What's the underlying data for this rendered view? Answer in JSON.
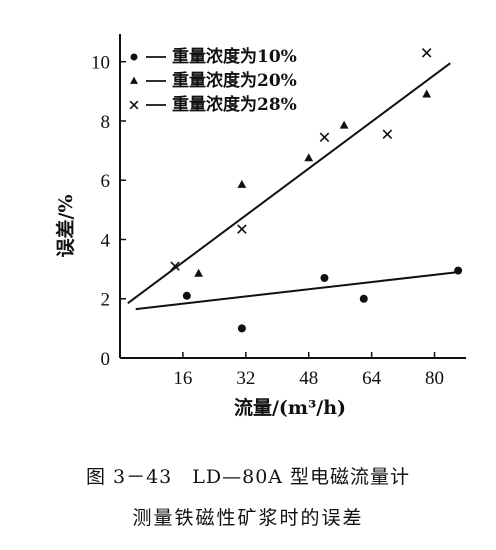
{
  "chart_data": {
    "type": "scatter",
    "xlabel": "流量/(m³/h)",
    "ylabel": "误差/%",
    "xlim": [
      0,
      88
    ],
    "ylim": [
      0,
      10.8
    ],
    "xticks": [
      16,
      32,
      48,
      64,
      80
    ],
    "yticks": [
      0,
      2,
      4,
      6,
      8,
      10
    ],
    "xtick_labels": [
      "16",
      "32",
      "48",
      "64",
      "80"
    ],
    "ytick_labels": [
      "0",
      "2",
      "4",
      "6",
      "8",
      "10"
    ],
    "legend_position": "top-left",
    "grid": false,
    "series": [
      {
        "name": "重量浓度为10%",
        "marker": "circle",
        "line_marker": "•",
        "points": [
          [
            17,
            2.1
          ],
          [
            31,
            1.0
          ],
          [
            52,
            2.7
          ],
          [
            62,
            2.0
          ],
          [
            86,
            2.95
          ]
        ]
      },
      {
        "name": "重量浓度为20%",
        "marker": "triangle",
        "line_marker": "▲",
        "points": [
          [
            20,
            2.85
          ],
          [
            31,
            5.85
          ],
          [
            48,
            6.75
          ],
          [
            57,
            7.85
          ],
          [
            78,
            8.9
          ]
        ]
      },
      {
        "name": "重量浓度为28%",
        "marker": "cross",
        "line_marker": "×",
        "points": [
          [
            14,
            3.1
          ],
          [
            31,
            4.35
          ],
          [
            52,
            7.45
          ],
          [
            68,
            7.55
          ],
          [
            78,
            10.3
          ]
        ]
      }
    ],
    "fit_lines": [
      {
        "name": "fit-10",
        "from": [
          4,
          1.65
        ],
        "to": [
          86,
          2.9
        ]
      },
      {
        "name": "fit-28",
        "from": [
          2,
          1.85
        ],
        "to": [
          84,
          9.95
        ]
      }
    ]
  },
  "caption": {
    "line1": "图 3－43　LD—80A 型电磁流量计",
    "line2": "测量铁磁性矿浆时的误差"
  }
}
